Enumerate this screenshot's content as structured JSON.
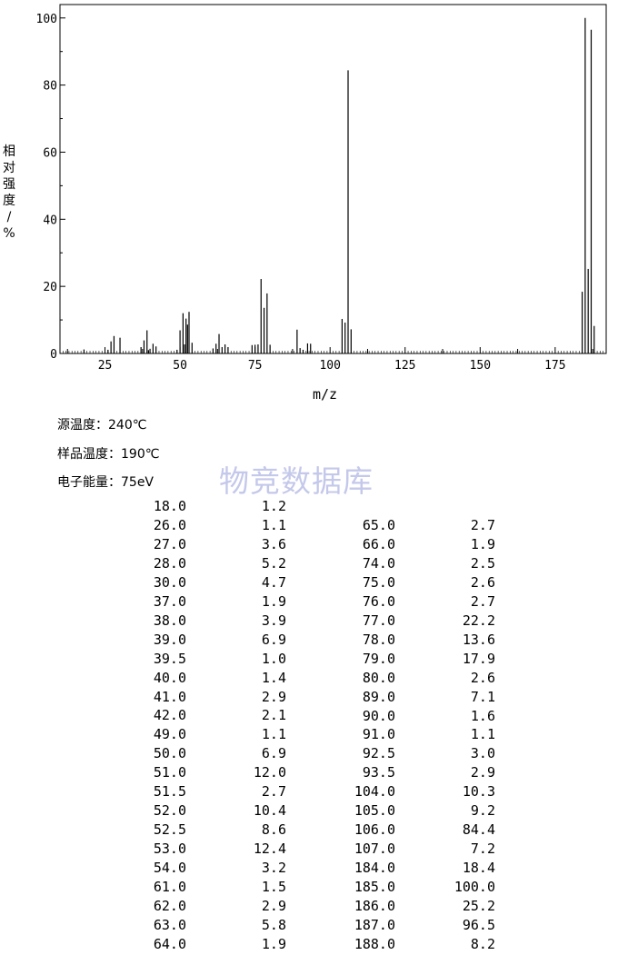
{
  "chart_data": {
    "type": "bar",
    "xlabel": "m/z",
    "ylabel": "相对强度/%",
    "xlim": [
      10,
      192
    ],
    "ylim": [
      0,
      104
    ],
    "xticks": [
      25,
      50,
      75,
      100,
      125,
      150,
      175
    ],
    "yticks": [
      0,
      20,
      40,
      60,
      80,
      100
    ],
    "peaks": [
      {
        "mz": 18.0,
        "ab": 1.2
      },
      {
        "mz": 26.0,
        "ab": 1.1
      },
      {
        "mz": 27.0,
        "ab": 3.6
      },
      {
        "mz": 28.0,
        "ab": 5.2
      },
      {
        "mz": 30.0,
        "ab": 4.7
      },
      {
        "mz": 37.0,
        "ab": 1.9
      },
      {
        "mz": 38.0,
        "ab": 3.9
      },
      {
        "mz": 39.0,
        "ab": 6.9
      },
      {
        "mz": 39.5,
        "ab": 1.0
      },
      {
        "mz": 40.0,
        "ab": 1.4
      },
      {
        "mz": 41.0,
        "ab": 2.9
      },
      {
        "mz": 42.0,
        "ab": 2.1
      },
      {
        "mz": 49.0,
        "ab": 1.1
      },
      {
        "mz": 50.0,
        "ab": 6.9
      },
      {
        "mz": 51.0,
        "ab": 12.0
      },
      {
        "mz": 51.5,
        "ab": 2.7
      },
      {
        "mz": 52.0,
        "ab": 10.4
      },
      {
        "mz": 52.5,
        "ab": 8.6
      },
      {
        "mz": 53.0,
        "ab": 12.4
      },
      {
        "mz": 54.0,
        "ab": 3.2
      },
      {
        "mz": 61.0,
        "ab": 1.5
      },
      {
        "mz": 62.0,
        "ab": 2.9
      },
      {
        "mz": 63.0,
        "ab": 5.8
      },
      {
        "mz": 64.0,
        "ab": 1.9
      },
      {
        "mz": 65.0,
        "ab": 2.7
      },
      {
        "mz": 66.0,
        "ab": 1.9
      },
      {
        "mz": 74.0,
        "ab": 2.5
      },
      {
        "mz": 75.0,
        "ab": 2.6
      },
      {
        "mz": 76.0,
        "ab": 2.7
      },
      {
        "mz": 77.0,
        "ab": 22.2
      },
      {
        "mz": 78.0,
        "ab": 13.6
      },
      {
        "mz": 79.0,
        "ab": 17.9
      },
      {
        "mz": 80.0,
        "ab": 2.6
      },
      {
        "mz": 89.0,
        "ab": 7.1
      },
      {
        "mz": 90.0,
        "ab": 1.6
      },
      {
        "mz": 91.0,
        "ab": 1.1
      },
      {
        "mz": 92.5,
        "ab": 3.0
      },
      {
        "mz": 93.5,
        "ab": 2.9
      },
      {
        "mz": 104.0,
        "ab": 10.3
      },
      {
        "mz": 105.0,
        "ab": 9.2
      },
      {
        "mz": 106.0,
        "ab": 84.4
      },
      {
        "mz": 107.0,
        "ab": 7.2
      },
      {
        "mz": 184.0,
        "ab": 18.4
      },
      {
        "mz": 185.0,
        "ab": 100.0
      },
      {
        "mz": 186.0,
        "ab": 25.2
      },
      {
        "mz": 187.0,
        "ab": 96.5
      },
      {
        "mz": 188.0,
        "ab": 8.2
      }
    ]
  },
  "conditions": {
    "source_temp": "源温度：240℃",
    "sample_temp": "样品温度：190℃",
    "electron_energy": "电子能量：75eV"
  },
  "watermark": "物竞数据库",
  "table": {
    "left": [
      [
        "18.0",
        "1.2"
      ],
      [
        "26.0",
        "1.1"
      ],
      [
        "27.0",
        "3.6"
      ],
      [
        "28.0",
        "5.2"
      ],
      [
        "30.0",
        "4.7"
      ],
      [
        "37.0",
        "1.9"
      ],
      [
        "38.0",
        "3.9"
      ],
      [
        "39.0",
        "6.9"
      ],
      [
        "39.5",
        "1.0"
      ],
      [
        "40.0",
        "1.4"
      ],
      [
        "41.0",
        "2.9"
      ],
      [
        "42.0",
        "2.1"
      ],
      [
        "49.0",
        "1.1"
      ],
      [
        "50.0",
        "6.9"
      ],
      [
        "51.0",
        "12.0"
      ],
      [
        "51.5",
        "2.7"
      ],
      [
        "52.0",
        "10.4"
      ],
      [
        "52.5",
        "8.6"
      ],
      [
        "53.0",
        "12.4"
      ],
      [
        "54.0",
        "3.2"
      ],
      [
        "61.0",
        "1.5"
      ],
      [
        "62.0",
        "2.9"
      ],
      [
        "63.0",
        "5.8"
      ],
      [
        "64.0",
        "1.9"
      ]
    ],
    "right": [
      [
        "65.0",
        "2.7"
      ],
      [
        "66.0",
        "1.9"
      ],
      [
        "74.0",
        "2.5"
      ],
      [
        "75.0",
        "2.6"
      ],
      [
        "76.0",
        "2.7"
      ],
      [
        "77.0",
        "22.2"
      ],
      [
        "78.0",
        "13.6"
      ],
      [
        "79.0",
        "17.9"
      ],
      [
        "80.0",
        "2.6"
      ],
      [
        "89.0",
        "7.1"
      ],
      [
        "90.0",
        "1.6"
      ],
      [
        "91.0",
        "1.1"
      ],
      [
        "92.5",
        "3.0"
      ],
      [
        "93.5",
        "2.9"
      ],
      [
        "104.0",
        "10.3"
      ],
      [
        "105.0",
        "9.2"
      ],
      [
        "106.0",
        "84.4"
      ],
      [
        "107.0",
        "7.2"
      ],
      [
        "184.0",
        "18.4"
      ],
      [
        "185.0",
        "100.0"
      ],
      [
        "186.0",
        "25.2"
      ],
      [
        "187.0",
        "96.5"
      ],
      [
        "188.0",
        "8.2"
      ]
    ]
  }
}
